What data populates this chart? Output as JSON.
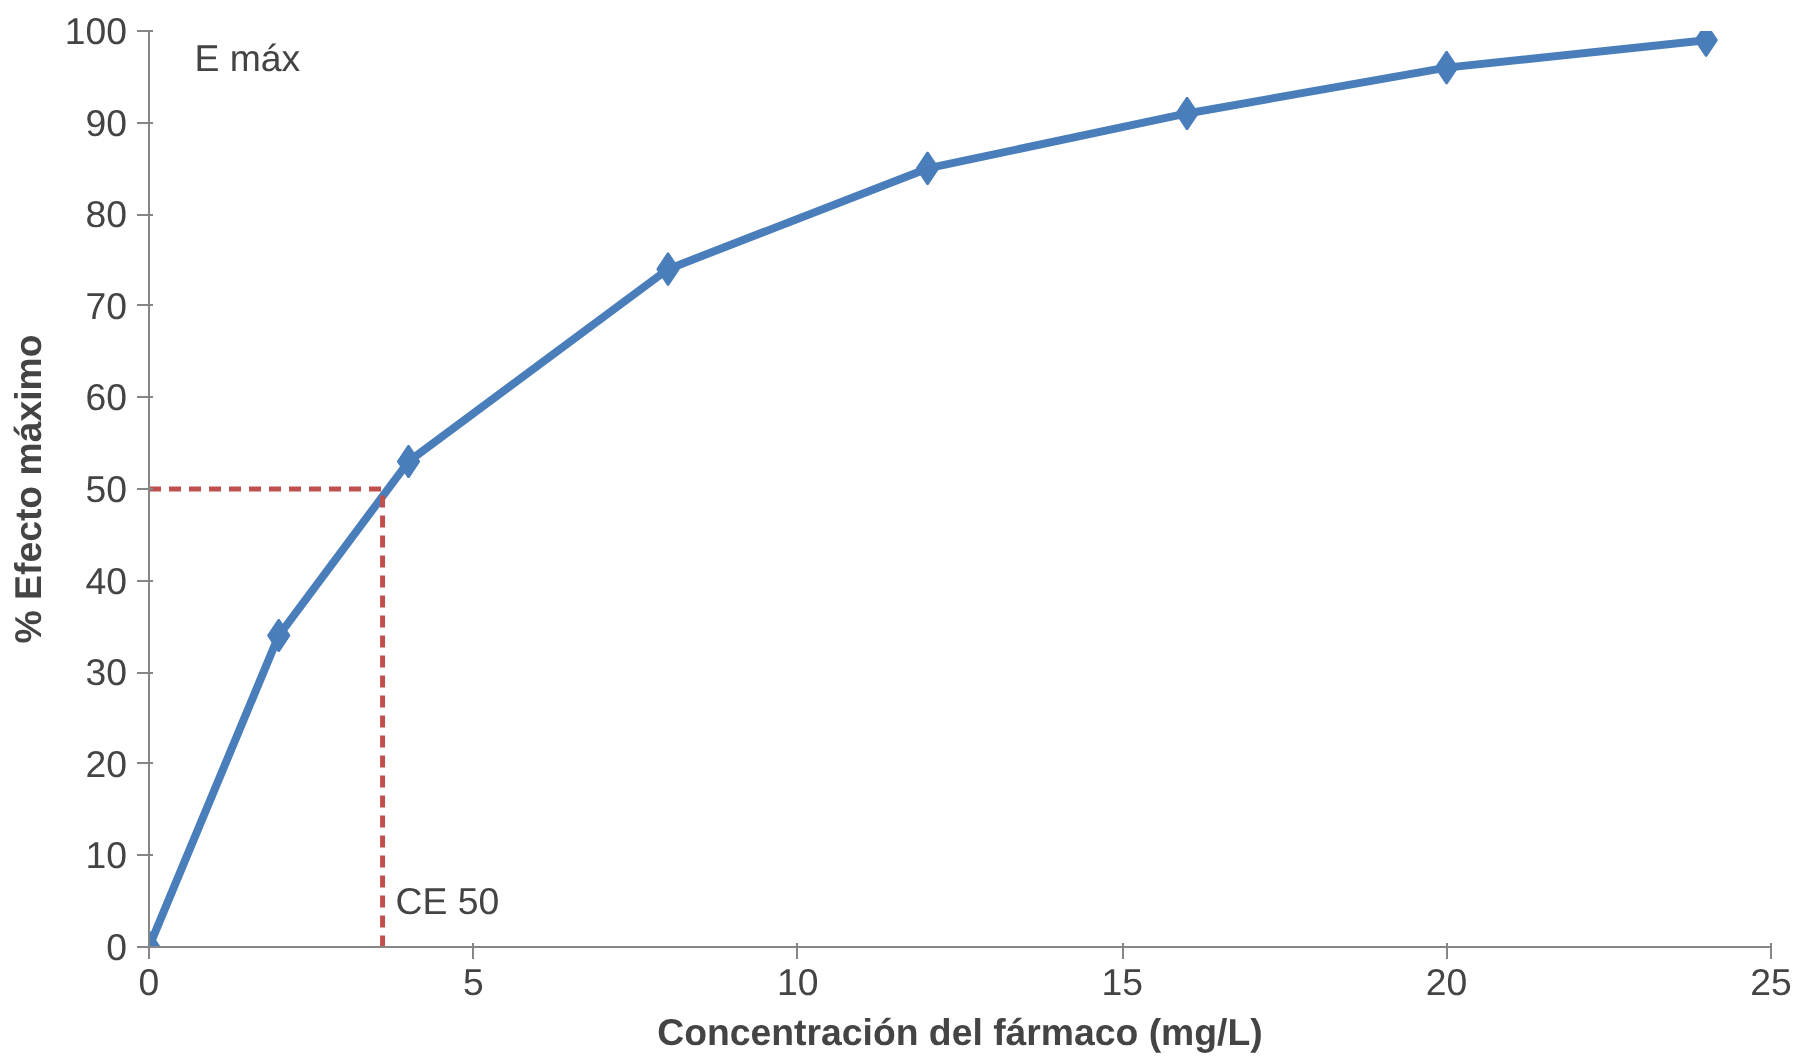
{
  "chart_data": {
    "type": "line",
    "xlabel": "Concentración del fármaco (mg/L)",
    "ylabel": "% Efecto máximo",
    "xlim": [
      0,
      25
    ],
    "xticks": [
      0,
      5,
      10,
      15,
      20,
      25
    ],
    "ylim": [
      0,
      100
    ],
    "yticks": [
      0,
      10,
      20,
      30,
      40,
      50,
      60,
      70,
      80,
      90,
      100
    ],
    "grid": false,
    "marker": "diamond",
    "line_style": "solid",
    "series": [
      {
        "color": "#4a7ebb",
        "x": [
          0,
          2,
          4,
          8,
          12,
          16,
          20,
          24
        ],
        "values": [
          0,
          34,
          53,
          74,
          85,
          91,
          96,
          99
        ]
      },
      {
        "color": "#c0504d",
        "x": [
          0,
          3.6,
          3.6
        ],
        "values": [
          50,
          50,
          0
        ],
        "line_style": "dashed",
        "marker": "none"
      }
    ],
    "annotations": [
      "E máx",
      "CE 50"
    ]
  }
}
